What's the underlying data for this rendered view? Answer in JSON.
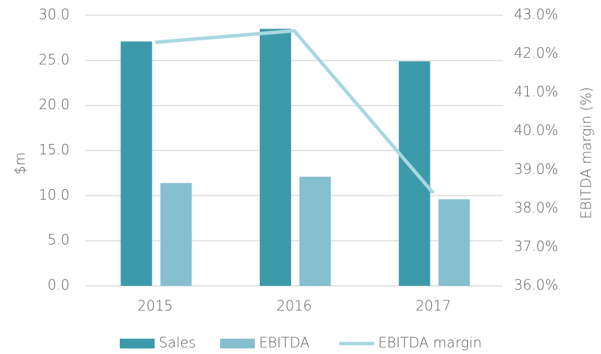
{
  "chart_data": {
    "type": "bar",
    "categories": [
      "2015",
      "2016",
      "2017"
    ],
    "series": [
      {
        "name": "Sales",
        "color": "#3d9aab",
        "values": [
          27.1,
          28.5,
          24.9
        ]
      },
      {
        "name": "EBITDA",
        "color": "#86c0d0",
        "values": [
          11.4,
          12.1,
          9.6
        ]
      },
      {
        "name": "EBITDA margin",
        "color": "#a8d8e0",
        "type": "line",
        "axis": "y2",
        "values": [
          42.3,
          42.6,
          38.4
        ]
      }
    ],
    "y_label": "$m",
    "y2_label": "EBITDA margin (%)",
    "ylim": [
      0,
      30
    ],
    "yticks": [
      {
        "value": 0,
        "label": "0.0"
      },
      {
        "value": 5,
        "label": "5.0"
      },
      {
        "value": 10,
        "label": "10.0"
      },
      {
        "value": 15,
        "label": "15.0"
      },
      {
        "value": 20,
        "label": "20.0"
      },
      {
        "value": 25,
        "label": "25.0"
      },
      {
        "value": 30,
        "label": "30.0"
      }
    ],
    "y2lim": [
      36,
      43
    ],
    "y2ticks": [
      {
        "value": 36,
        "label": "36.0%"
      },
      {
        "value": 37,
        "label": "37.0%"
      },
      {
        "value": 38,
        "label": "38.0%"
      },
      {
        "value": 39,
        "label": "39.0%"
      },
      {
        "value": 40,
        "label": "40.0%"
      },
      {
        "value": 41,
        "label": "41.0%"
      },
      {
        "value": 42,
        "label": "42.0%"
      },
      {
        "value": 43,
        "label": "43.0%"
      }
    ],
    "grid": true,
    "legend": "bottom"
  }
}
